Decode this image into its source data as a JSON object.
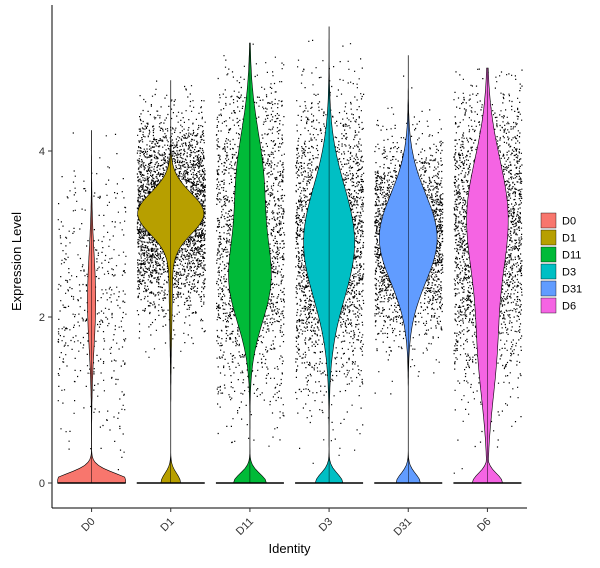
{
  "chart_data": {
    "type": "violin",
    "xlabel": "Identity",
    "ylabel": "Expression Level",
    "ylim": [
      -0.4,
      5.6
    ],
    "yticks": [
      0,
      2,
      4
    ],
    "grid": false,
    "legend_position": "right",
    "categories": [
      "D0",
      "D1",
      "D11",
      "D3",
      "D31",
      "D6"
    ],
    "series": [
      {
        "name": "D0",
        "color": "#F8766D",
        "max": 4.25,
        "zero_fraction": 0.72,
        "median_nonzero": 2.2
      },
      {
        "name": "D1",
        "color": "#B79F00",
        "max": 4.85,
        "zero_fraction": 0.03,
        "median_nonzero": 3.25
      },
      {
        "name": "D11",
        "color": "#00BA38",
        "max": 5.3,
        "zero_fraction": 0.18,
        "median_nonzero": 2.6
      },
      {
        "name": "D3",
        "color": "#00BFC4",
        "max": 5.5,
        "zero_fraction": 0.12,
        "median_nonzero": 2.9
      },
      {
        "name": "D31",
        "color": "#619CFF",
        "max": 5.15,
        "zero_fraction": 0.08,
        "median_nonzero": 2.95
      },
      {
        "name": "D6",
        "color": "#F564E3",
        "max": 5.0,
        "zero_fraction": 0.15,
        "median_nonzero": 3.0
      }
    ]
  }
}
